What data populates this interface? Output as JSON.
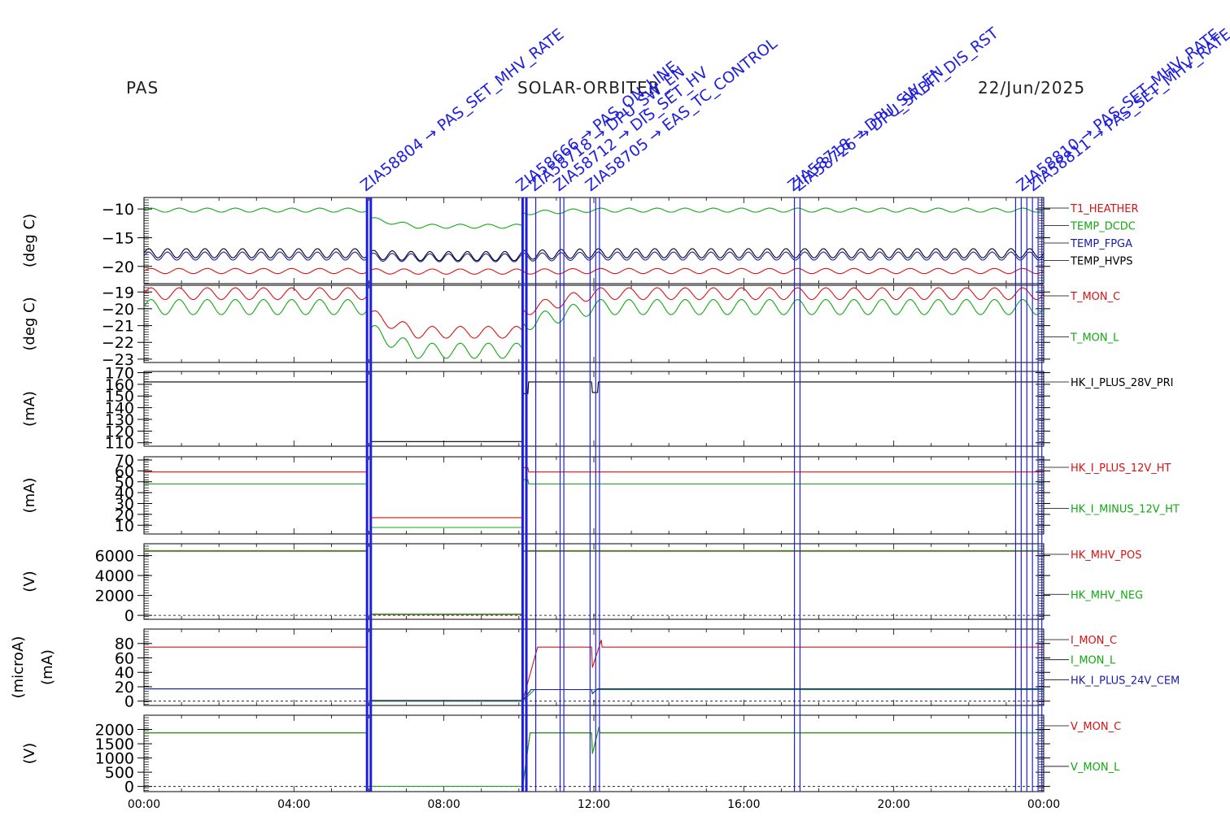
{
  "header": {
    "left": "PAS",
    "center": "SOLAR-ORBITER",
    "right": "22/Jun/2025"
  },
  "colors": {
    "red": "#dd1111",
    "green": "#11aa11",
    "blue": "#1a1aaa",
    "black": "#000000",
    "marker": "#1f1fe0"
  },
  "chart_data": {
    "type": "line",
    "x_ticks": [
      "00:00",
      "04:00",
      "08:00",
      "12:00",
      "16:00",
      "20:00",
      "00:00"
    ],
    "x_range_hours": [
      0,
      24
    ],
    "markers_hours": [
      5.95,
      6.05,
      10.1,
      10.2,
      10.45,
      11.1,
      11.2,
      11.9,
      12.05,
      12.15,
      17.35,
      17.5,
      23.25,
      23.4,
      23.55,
      23.7,
      23.85,
      23.95
    ],
    "marker_labels": [
      {
        "hour": 6.0,
        "text": "ZIA58804 → PAS_SET_MHV_RATE"
      },
      {
        "hour": 10.15,
        "text": "ZIA58666 → PAS_ON_LINE"
      },
      {
        "hour": 10.5,
        "text": "ZIA58718 → DPU_SW_EN"
      },
      {
        "hour": 11.15,
        "text": "ZIA58712 → DIS_SET_HV"
      },
      {
        "hour": 12.0,
        "text": "ZIA58705 → EAS_TC_CONTROL"
      },
      {
        "hour": 17.4,
        "text": "ZIA58718 → DPU_SW_EN"
      },
      {
        "hour": 17.55,
        "text": "ZIA58726 → DPU_SRBIT_DIS_RST"
      },
      {
        "hour": 23.5,
        "text": "ZIA58810 → PAS_SET_MHV_RATE"
      },
      {
        "hour": 23.8,
        "text": "ZIA58811 → PAS_SET_MHV_RATE"
      }
    ],
    "panels": [
      {
        "ylabel": "(deg C)",
        "ylim": [
          -23,
          -8
        ],
        "yticks": [
          -10,
          -15,
          -20
        ],
        "ytick_labels": [
          "−10",
          "−15",
          "−20"
        ],
        "series": [
          {
            "name": "T1_HEATHER",
            "color": "#dd1111",
            "base": -20.8,
            "amp": 0.45,
            "period": 0.75,
            "dip": -0.1,
            "dip_rec": -0.1
          },
          {
            "name": "TEMP_DCDC",
            "color": "#11aa11",
            "base": -10.2,
            "amp": 0.35,
            "period": 0.75,
            "dip": -2.8,
            "dip_rec": -0.5
          },
          {
            "name": "TEMP_FPGA",
            "color": "#1a1aaa",
            "base": -18.2,
            "amp": 0.7,
            "period": 0.5,
            "dip": -0.3,
            "dip_rec": -0.2
          },
          {
            "name": "TEMP_HVPS",
            "color": "#000000",
            "base": -17.7,
            "amp": 0.8,
            "period": 0.5,
            "dip": -0.5,
            "dip_rec": -0.3
          }
        ]
      },
      {
        "ylabel": "(deg C)",
        "ylim": [
          -23.2,
          -18.6
        ],
        "yticks": [
          -19,
          -20,
          -21,
          -22,
          -23
        ],
        "ytick_labels": [
          "−19",
          "−20",
          "−21",
          "−22",
          "−23"
        ],
        "series": [
          {
            "name": "T_MON_C",
            "color": "#dd1111",
            "base": -19.1,
            "amp": 0.35,
            "period": 0.75,
            "dip": -2.3,
            "dip_rec": -1.0
          },
          {
            "name": "T_MON_L",
            "color": "#11aa11",
            "base": -19.9,
            "amp": 0.45,
            "period": 0.75,
            "dip": -2.6,
            "dip_rec": -1.0
          }
        ]
      },
      {
        "ylabel": "(mA)",
        "ylim": [
          107,
          171
        ],
        "yticks": [
          110,
          120,
          130,
          140,
          150,
          160,
          170
        ],
        "ytick_labels": [
          "110",
          "120",
          "130",
          "140",
          "150",
          "160",
          "170"
        ],
        "series": [
          {
            "name": "HK_I_PLUS_28V_PRI",
            "color": "#000000",
            "levels": [
              [
                0,
                5.95,
                162
              ],
              [
                5.95,
                6.05,
                null
              ],
              [
                6.05,
                10.1,
                111
              ],
              [
                10.1,
                10.25,
                152
              ],
              [
                10.25,
                11.95,
                162
              ],
              [
                11.95,
                12.1,
                153
              ],
              [
                12.1,
                24,
                162
              ]
            ]
          }
        ]
      },
      {
        "ylabel": "(mA)",
        "ylim": [
          2,
          73
        ],
        "yticks": [
          10,
          20,
          30,
          40,
          50,
          60,
          70
        ],
        "ytick_labels": [
          "10",
          "20",
          "30",
          "40",
          "50",
          "60",
          "70"
        ],
        "series": [
          {
            "name": "HK_I_PLUS_12V_HT",
            "color": "#dd1111",
            "levels": [
              [
                0,
                5.95,
                59
              ],
              [
                5.95,
                6.05,
                null
              ],
              [
                6.05,
                10.1,
                17
              ],
              [
                10.1,
                10.25,
                63
              ],
              [
                10.25,
                24,
                59
              ]
            ]
          },
          {
            "name": "HK_I_MINUS_12V_HT",
            "color": "#11aa11",
            "levels": [
              [
                0,
                5.95,
                48
              ],
              [
                5.95,
                6.05,
                null
              ],
              [
                6.05,
                10.1,
                8
              ],
              [
                10.1,
                10.25,
                52
              ],
              [
                10.25,
                24,
                48
              ]
            ]
          }
        ]
      },
      {
        "ylabel": "(V)",
        "ylim": [
          -400,
          7200
        ],
        "yticks": [
          0,
          2000,
          4000,
          6000
        ],
        "ytick_labels": [
          "0",
          "2000",
          "4000",
          "6000"
        ],
        "zero_line": true,
        "series": [
          {
            "name": "HK_MHV_POS",
            "color": "#dd1111",
            "levels": [
              [
                0,
                5.95,
                6450
              ],
              [
                5.95,
                6.05,
                null
              ],
              [
                6.05,
                10.1,
                80
              ],
              [
                10.1,
                24,
                6450
              ]
            ]
          },
          {
            "name": "HK_MHV_NEG",
            "color": "#11aa11",
            "levels": [
              [
                0,
                5.95,
                6500
              ],
              [
                5.95,
                6.05,
                null
              ],
              [
                6.05,
                10.1,
                120
              ],
              [
                10.1,
                24,
                6500
              ]
            ]
          }
        ]
      },
      {
        "ylabel": "(microA)",
        "ylabel2": "(mA)",
        "ylim": [
          -6,
          100
        ],
        "yticks": [
          0,
          20,
          40,
          60,
          80
        ],
        "ytick_labels": [
          "0",
          "20",
          "40",
          "60",
          "80"
        ],
        "zero_line": true,
        "series": [
          {
            "name": "I_MON_C",
            "color": "#dd1111",
            "levels": [
              [
                0,
                5.95,
                75
              ],
              [
                5.95,
                6.05,
                null
              ],
              [
                6.05,
                10.1,
                0
              ],
              [
                10.1,
                10.5,
                "ramp",
                0,
                75
              ],
              [
                10.5,
                11.95,
                75
              ],
              [
                11.95,
                12.2,
                "ramp",
                45,
                85
              ],
              [
                12.2,
                24,
                75
              ]
            ]
          },
          {
            "name": "I_MON_L",
            "color": "#11aa11",
            "levels": [
              [
                0,
                5.95,
                17
              ],
              [
                5.95,
                6.05,
                null
              ],
              [
                6.05,
                10.1,
                0
              ],
              [
                10.1,
                10.4,
                "ramp",
                0,
                15
              ],
              [
                10.4,
                24,
                16
              ]
            ]
          },
          {
            "name": "HK_I_PLUS_24V_CEM",
            "color": "#1a1aaa",
            "levels": [
              [
                0,
                5.95,
                17
              ],
              [
                5.95,
                6.05,
                null
              ],
              [
                6.05,
                10.1,
                1
              ],
              [
                10.1,
                10.3,
                "ramp",
                1,
                14
              ],
              [
                10.3,
                11.95,
                16
              ],
              [
                11.95,
                12.1,
                "ramp",
                10,
                17
              ],
              [
                12.1,
                24,
                17
              ]
            ]
          }
        ]
      },
      {
        "ylabel": "(V)",
        "ylim": [
          -180,
          2500
        ],
        "yticks": [
          0,
          500,
          1000,
          1500,
          2000
        ],
        "ytick_labels": [
          "0",
          "500",
          "1000",
          "1500",
          "2000"
        ],
        "zero_line": true,
        "series": [
          {
            "name": "V_MON_C",
            "color": "#dd1111",
            "levels": [
              [
                0,
                5.95,
                1880
              ],
              [
                5.95,
                6.05,
                null
              ],
              [
                6.05,
                10.1,
                5
              ],
              [
                10.1,
                10.3,
                "ramp",
                5,
                1880
              ],
              [
                10.3,
                11.95,
                1880
              ],
              [
                11.95,
                12.15,
                "ramp",
                1100,
                2150
              ],
              [
                12.15,
                24,
                1880
              ]
            ]
          },
          {
            "name": "V_MON_L",
            "color": "#11aa11",
            "levels": [
              [
                0,
                5.95,
                1880
              ],
              [
                5.95,
                6.05,
                null
              ],
              [
                6.05,
                10.1,
                5
              ],
              [
                10.1,
                10.3,
                "ramp",
                5,
                1880
              ],
              [
                10.3,
                11.95,
                1880
              ],
              [
                11.95,
                12.15,
                "ramp",
                1100,
                2150
              ],
              [
                12.15,
                24,
                1880
              ]
            ]
          }
        ]
      }
    ]
  }
}
